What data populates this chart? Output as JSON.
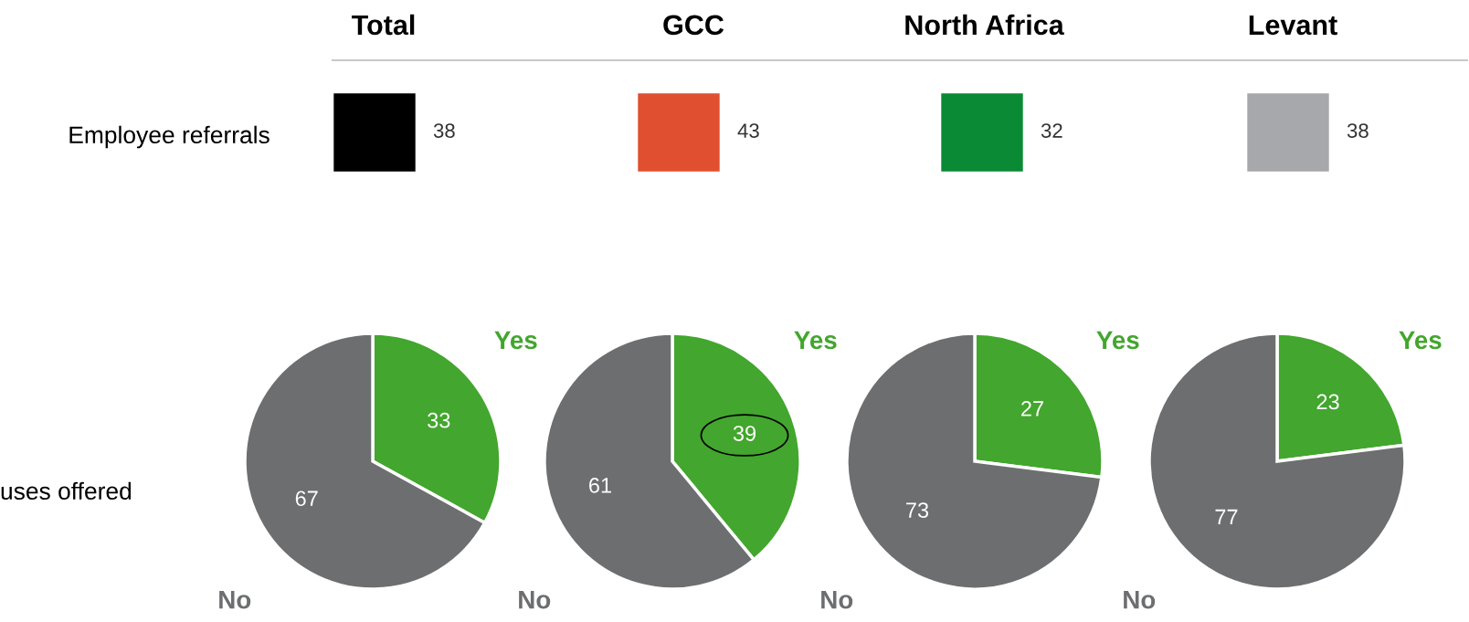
{
  "chart_data": [
    {
      "type": "other",
      "categories": [
        "Total",
        "GCC",
        "North Africa",
        "Levant"
      ],
      "ylabel": "Employee referrals",
      "values": [
        38,
        43,
        32,
        38
      ],
      "value_labels": [
        "38",
        "43",
        "32",
        "38"
      ],
      "colors": [
        "#000000",
        "#e05030",
        "#0b8a35",
        "#a7a8ab"
      ]
    },
    {
      "type": "pie",
      "ylabel": "uses offered",
      "categories": [
        "Yes",
        "No"
      ],
      "values": [
        33,
        67
      ],
      "colors": [
        "#43a62e",
        "#6d6e70"
      ],
      "data_labels": true
    },
    {
      "type": "pie",
      "categories": [
        "Yes",
        "No"
      ],
      "values": [
        39,
        61
      ],
      "colors": [
        "#43a62e",
        "#6d6e70"
      ],
      "data_labels": true
    },
    {
      "type": "pie",
      "categories": [
        "Yes",
        "No"
      ],
      "values": [
        27,
        73
      ],
      "colors": [
        "#43a62e",
        "#6d6e70"
      ],
      "data_labels": true
    },
    {
      "type": "pie",
      "categories": [
        "Yes",
        "No"
      ],
      "values": [
        23,
        77
      ],
      "colors": [
        "#43a62e",
        "#6d6e70"
      ],
      "data_labels": true
    }
  ]
}
